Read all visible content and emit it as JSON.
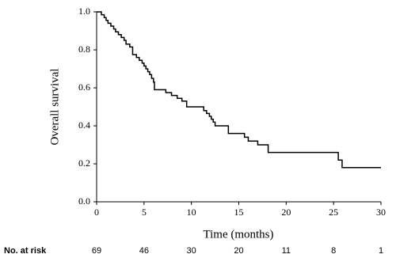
{
  "chart_data": {
    "type": "step",
    "x_label": "Time (months)",
    "y_label": "Overall survival",
    "x": [
      0,
      0.5,
      0.8,
      1.0,
      1.2,
      1.5,
      1.8,
      2.0,
      2.3,
      2.6,
      2.9,
      3.1,
      3.5,
      3.8,
      4.2,
      4.5,
      4.8,
      5.0,
      5.2,
      5.4,
      5.6,
      5.8,
      6.0,
      6.1,
      7.0,
      7.3,
      7.9,
      8.5,
      9.0,
      9.5,
      11.0,
      11.3,
      11.6,
      11.9,
      12.1,
      12.3,
      12.5,
      13.9,
      15.6,
      16.0,
      17.0,
      18.1,
      25.5,
      25.9,
      30
    ],
    "values": [
      1.0,
      0.985,
      0.97,
      0.955,
      0.94,
      0.925,
      0.91,
      0.895,
      0.88,
      0.865,
      0.85,
      0.83,
      0.815,
      0.775,
      0.76,
      0.745,
      0.73,
      0.715,
      0.7,
      0.685,
      0.67,
      0.65,
      0.63,
      0.59,
      0.59,
      0.575,
      0.56,
      0.545,
      0.53,
      0.5,
      0.5,
      0.48,
      0.465,
      0.45,
      0.435,
      0.42,
      0.4,
      0.36,
      0.34,
      0.32,
      0.3,
      0.26,
      0.22,
      0.18,
      0.18
    ],
    "color": "#000000",
    "xlim": [
      0,
      30
    ],
    "xticks": [
      0,
      5,
      10,
      15,
      20,
      25,
      30
    ],
    "ylim": [
      0,
      1
    ],
    "yticks": [
      {
        "value": 0,
        "label": "0.0"
      },
      0.2,
      0.4,
      0.6,
      0.8,
      {
        "value": 1,
        "label": "1.0"
      }
    ],
    "risk_table": {
      "label": "No. at risk",
      "values": [
        69,
        46,
        30,
        20,
        11,
        8,
        1
      ]
    }
  }
}
